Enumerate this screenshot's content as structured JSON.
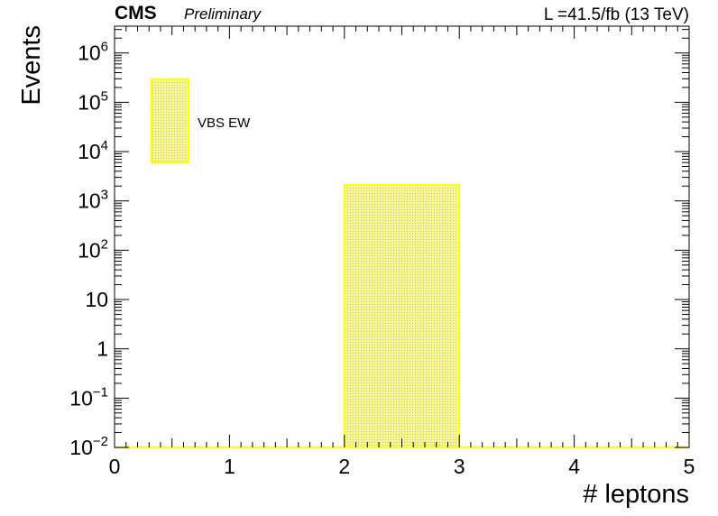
{
  "header": {
    "experiment": "CMS",
    "status": "Preliminary",
    "luminosity": "L =41.5/fb (13 TeV)"
  },
  "chart_data": {
    "type": "bar",
    "xlabel": "# leptons",
    "ylabel": "Events",
    "xlim": [
      0,
      5
    ],
    "ylim": [
      0.01,
      3500000
    ],
    "log_y": true,
    "x_ticks": [
      "0",
      "1",
      "2",
      "3",
      "4",
      "5"
    ],
    "y_ticks": [
      {
        "base": "10",
        "exp": "6"
      },
      {
        "base": "10",
        "exp": "5"
      },
      {
        "base": "10",
        "exp": "4"
      },
      {
        "base": "10",
        "exp": "3"
      },
      {
        "base": "10",
        "exp": "2"
      },
      {
        "base": "10",
        "exp": ""
      },
      {
        "base": "1",
        "exp": ""
      },
      {
        "base": "10",
        "exp": "−1"
      },
      {
        "base": "10",
        "exp": "−2"
      }
    ],
    "legend_position": "top-left",
    "series": [
      {
        "name": "VBS EW",
        "color": "#ffff00",
        "fill_color": "#f2f27a",
        "bins": [
          {
            "x_low": 0,
            "x_high": 1,
            "value": 0
          },
          {
            "x_low": 1,
            "x_high": 2,
            "value": 0
          },
          {
            "x_low": 2,
            "x_high": 3,
            "value": 2100
          },
          {
            "x_low": 3,
            "x_high": 4,
            "value": 0
          },
          {
            "x_low": 4,
            "x_high": 5,
            "value": 0
          }
        ]
      }
    ]
  }
}
